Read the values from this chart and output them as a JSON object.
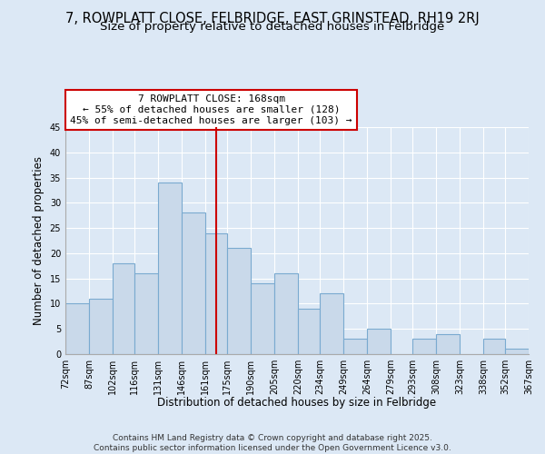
{
  "title": "7, ROWPLATT CLOSE, FELBRIDGE, EAST GRINSTEAD, RH19 2RJ",
  "subtitle": "Size of property relative to detached houses in Felbridge",
  "xlabel": "Distribution of detached houses by size in Felbridge",
  "ylabel": "Number of detached properties",
  "bins": [
    72,
    87,
    102,
    116,
    131,
    146,
    161,
    175,
    190,
    205,
    220,
    234,
    249,
    264,
    279,
    293,
    308,
    323,
    338,
    352,
    367
  ],
  "counts": [
    10,
    11,
    18,
    16,
    34,
    28,
    24,
    21,
    14,
    16,
    9,
    12,
    3,
    5,
    0,
    3,
    4,
    0,
    3,
    1
  ],
  "bar_color": "#c9d9ea",
  "bar_edge_color": "#7aaad0",
  "vline_x": 168,
  "vline_color": "#cc0000",
  "annotation_line1": "7 ROWPLATT CLOSE: 168sqm",
  "annotation_line2": "← 55% of detached houses are smaller (128)",
  "annotation_line3": "45% of semi-detached houses are larger (103) →",
  "ylim": [
    0,
    45
  ],
  "yticks": [
    0,
    5,
    10,
    15,
    20,
    25,
    30,
    35,
    40,
    45
  ],
  "background_color": "#dce8f5",
  "plot_bg_color": "#dce8f5",
  "grid_color": "#ffffff",
  "footer_line1": "Contains HM Land Registry data © Crown copyright and database right 2025.",
  "footer_line2": "Contains public sector information licensed under the Open Government Licence v3.0.",
  "title_fontsize": 10.5,
  "subtitle_fontsize": 9.5,
  "xlabel_fontsize": 8.5,
  "ylabel_fontsize": 8.5,
  "tick_label_fontsize": 7,
  "annotation_fontsize": 8,
  "footer_fontsize": 6.5
}
